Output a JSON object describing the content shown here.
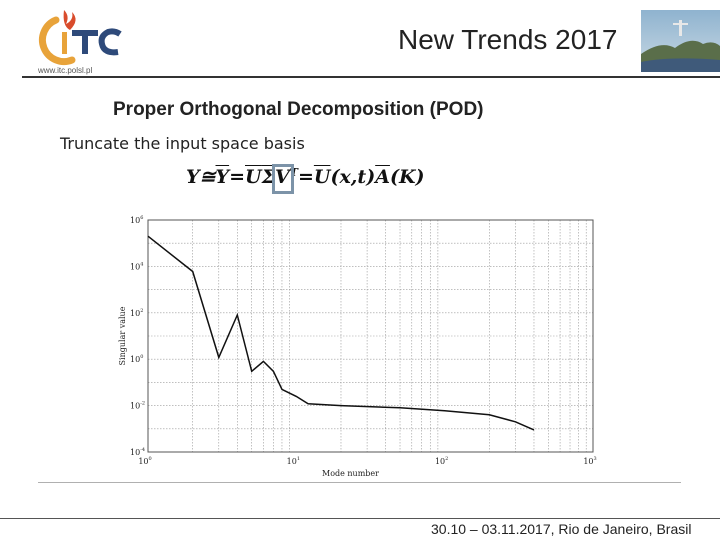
{
  "header": {
    "logo_text": "ITC",
    "logo_url": "www.itc.polsl.pl",
    "title": "New Trends 2017"
  },
  "slide": {
    "title": "Proper Orthogonal Decomposition (POD)",
    "subtitle": "Truncate the input space basis"
  },
  "formula": {
    "parts": [
      "Y",
      " ≅ ",
      "Y",
      " = ",
      "U",
      " ",
      "Σ",
      " ",
      "V",
      "T",
      " = ",
      "U",
      "(",
      "x",
      ",",
      "t",
      ")",
      "A",
      "(",
      "K",
      ")"
    ]
  },
  "footer": {
    "text": "30.10 – 03.11.2017, Rio de Janeiro, Brasil"
  },
  "chart_data": {
    "type": "line",
    "xlabel": "Mode number",
    "ylabel": "Singular value",
    "xscale": "log",
    "yscale": "log",
    "xlim": [
      1,
      1000
    ],
    "ylim": [
      0.0001,
      1000000
    ],
    "xticks": [
      {
        "base": "10",
        "exp": "0"
      },
      {
        "base": "10",
        "exp": "1"
      },
      {
        "base": "10",
        "exp": "2"
      },
      {
        "base": "10",
        "exp": "3"
      }
    ],
    "yticks": [
      {
        "base": "10",
        "exp": "-4"
      },
      {
        "base": "10",
        "exp": "-2"
      },
      {
        "base": "10",
        "exp": "0"
      },
      {
        "base": "10",
        "exp": "2"
      },
      {
        "base": "10",
        "exp": "4"
      },
      {
        "base": "10",
        "exp": "6"
      }
    ],
    "grid": true,
    "series": [
      {
        "x": [
          1,
          2,
          3,
          4,
          5,
          6,
          7,
          8,
          10,
          12,
          20,
          50,
          100,
          200,
          300,
          400
        ],
        "y": [
          200000,
          6000,
          1.2,
          80,
          0.3,
          0.8,
          0.3,
          0.05,
          0.025,
          0.012,
          0.01,
          0.008,
          0.006,
          0.004,
          0.002,
          0.0009
        ]
      }
    ]
  }
}
